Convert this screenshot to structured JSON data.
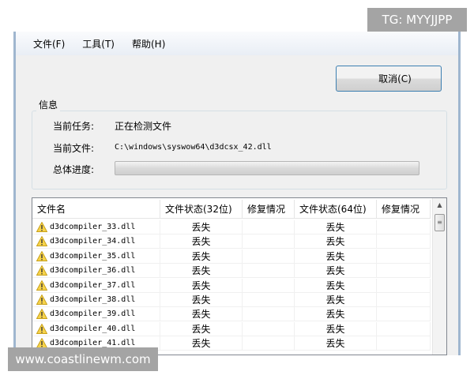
{
  "menu": [
    "文件(F)",
    "工具(T)",
    "帮助(H)"
  ],
  "cancel_label": "取消(C)",
  "info": {
    "group_label": "信息",
    "task_label": "当前任务:",
    "task_value": "正在检测文件",
    "file_label": "当前文件:",
    "file_value": "C:\\windows\\syswow64\\d3dcsx_42.dll",
    "progress_label": "总体进度:",
    "progress_percent": 0
  },
  "table": {
    "headers": [
      "文件名",
      "文件状态(32位)",
      "修复情况",
      "文件状态(64位)",
      "修复情况"
    ],
    "rows": [
      {
        "name": "d3dcompiler_33.dll",
        "s32": "丢失",
        "r32": "",
        "s64": "丢失",
        "r64": ""
      },
      {
        "name": "d3dcompiler_34.dll",
        "s32": "丢失",
        "r32": "",
        "s64": "丢失",
        "r64": ""
      },
      {
        "name": "d3dcompiler_35.dll",
        "s32": "丢失",
        "r32": "",
        "s64": "丢失",
        "r64": ""
      },
      {
        "name": "d3dcompiler_36.dll",
        "s32": "丢失",
        "r32": "",
        "s64": "丢失",
        "r64": ""
      },
      {
        "name": "d3dcompiler_37.dll",
        "s32": "丢失",
        "r32": "",
        "s64": "丢失",
        "r64": ""
      },
      {
        "name": "d3dcompiler_38.dll",
        "s32": "丢失",
        "r32": "",
        "s64": "丢失",
        "r64": ""
      },
      {
        "name": "d3dcompiler_39.dll",
        "s32": "丢失",
        "r32": "",
        "s64": "丢失",
        "r64": ""
      },
      {
        "name": "d3dcompiler_40.dll",
        "s32": "丢失",
        "r32": "",
        "s64": "丢失",
        "r64": ""
      },
      {
        "name": "d3dcompiler_41.dll",
        "s32": "丢失",
        "r32": "",
        "s64": "丢失",
        "r64": ""
      }
    ]
  },
  "row_icon": "warning-icon",
  "watermarks": {
    "top": "TG: MYYJJPP",
    "bottom": "www.coastlinewm.com"
  }
}
